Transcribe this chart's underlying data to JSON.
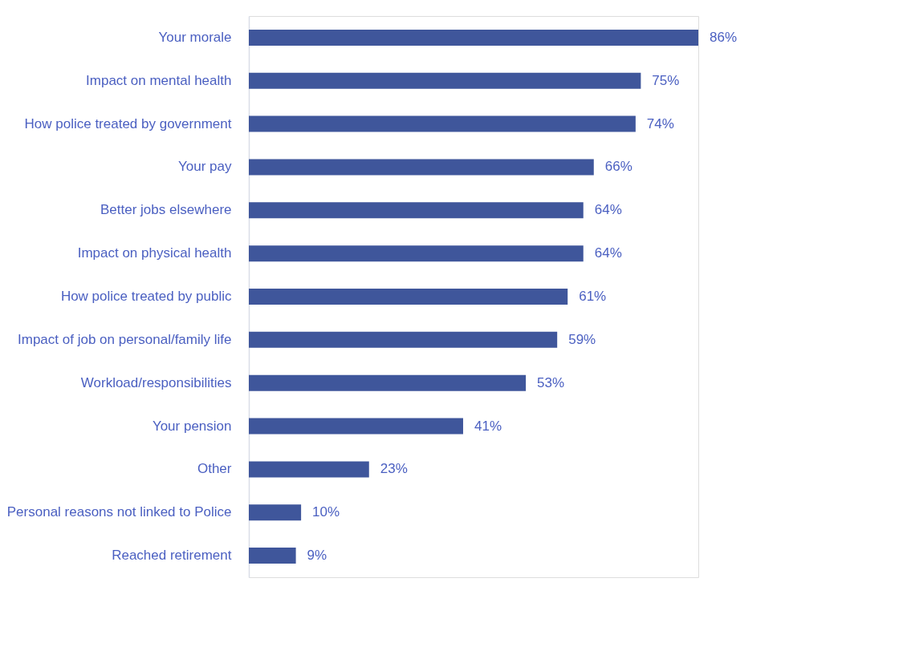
{
  "chart_data": {
    "type": "bar",
    "orientation": "horizontal",
    "categories": [
      "Your morale",
      "Impact on mental health",
      "How police treated by government",
      "Your pay",
      "Better jobs elsewhere",
      "Impact on physical health",
      "How police treated by public",
      "Impact of job on personal/family life",
      "Workload/responsibilities",
      "Your pension",
      "Other",
      "Personal reasons not linked to Police",
      "Reached retirement"
    ],
    "values": [
      86,
      75,
      74,
      66,
      64,
      64,
      61,
      59,
      53,
      41,
      23,
      10,
      9
    ],
    "value_labels": [
      "86%",
      "75%",
      "74%",
      "66%",
      "64%",
      "64%",
      "61%",
      "59%",
      "53%",
      "41%",
      "23%",
      "10%",
      "9%"
    ],
    "color": "#3f569b",
    "grid": false
  }
}
